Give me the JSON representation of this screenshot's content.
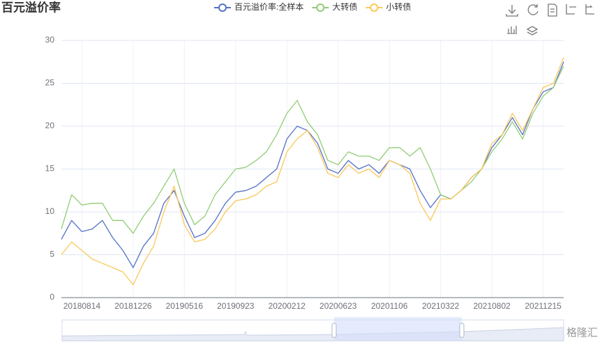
{
  "chart_data": {
    "type": "line",
    "title": "百元溢价率",
    "watermark": "格隆汇",
    "categories": [
      null,
      null,
      "20180814",
      null,
      null,
      null,
      null,
      "20181226",
      null,
      null,
      null,
      null,
      "20190516",
      null,
      null,
      null,
      null,
      "20190923",
      null,
      null,
      null,
      null,
      "20200212",
      null,
      null,
      null,
      null,
      "20200623",
      null,
      null,
      null,
      null,
      "20201106",
      null,
      null,
      null,
      null,
      "20210322",
      null,
      null,
      null,
      null,
      "20210802",
      null,
      null,
      null,
      null,
      "20211215",
      null,
      null
    ],
    "series": [
      {
        "name": "百元溢价率:全样本",
        "color": "#5470c6",
        "values": [
          6.8,
          9,
          7.7,
          8,
          9,
          7,
          5.5,
          3.5,
          6,
          7.5,
          11,
          12.5,
          9.5,
          7,
          7.5,
          9,
          11,
          12.3,
          12.5,
          13,
          14,
          15,
          18.5,
          20,
          19.5,
          18,
          15,
          14.5,
          16,
          15,
          15.5,
          14.5,
          16,
          15.5,
          15,
          12.5,
          10.5,
          12,
          11.5,
          12.5,
          14,
          15,
          17.5,
          19,
          21,
          19,
          22,
          24,
          24.5,
          27.5
        ]
      },
      {
        "name": "大转债",
        "color": "#91cc75",
        "values": [
          8,
          12,
          10.8,
          11,
          11,
          9,
          9,
          7.5,
          9.5,
          11,
          13,
          15,
          11,
          8.5,
          9.5,
          12,
          13.5,
          15,
          15.2,
          16,
          17,
          19,
          21.5,
          23,
          20.5,
          19,
          16,
          15.5,
          17,
          16.5,
          16.5,
          16,
          17.5,
          17.5,
          16.5,
          17.5,
          15,
          12,
          11.5,
          12.5,
          13.5,
          15,
          17,
          18.5,
          20.5,
          18.5,
          21.5,
          23.5,
          24.5,
          27
        ]
      },
      {
        "name": "小转债",
        "color": "#fac858",
        "values": [
          5,
          6.5,
          5.5,
          4.5,
          4,
          3.5,
          3,
          1.5,
          4,
          6,
          10,
          13,
          8.5,
          6.5,
          6.8,
          8,
          10,
          11.3,
          11.5,
          12,
          13,
          13.5,
          17,
          18.5,
          19.5,
          17.5,
          14.5,
          14,
          15.5,
          14.5,
          15,
          14,
          16,
          15.5,
          14.5,
          11,
          9,
          11.5,
          11.5,
          12.5,
          14,
          15,
          18,
          19,
          21.5,
          19.5,
          22,
          24.5,
          25,
          28
        ]
      }
    ],
    "ylim": [
      0,
      30
    ],
    "yticks": [
      0,
      5,
      10,
      15,
      20,
      25,
      30
    ],
    "grid": true
  }
}
